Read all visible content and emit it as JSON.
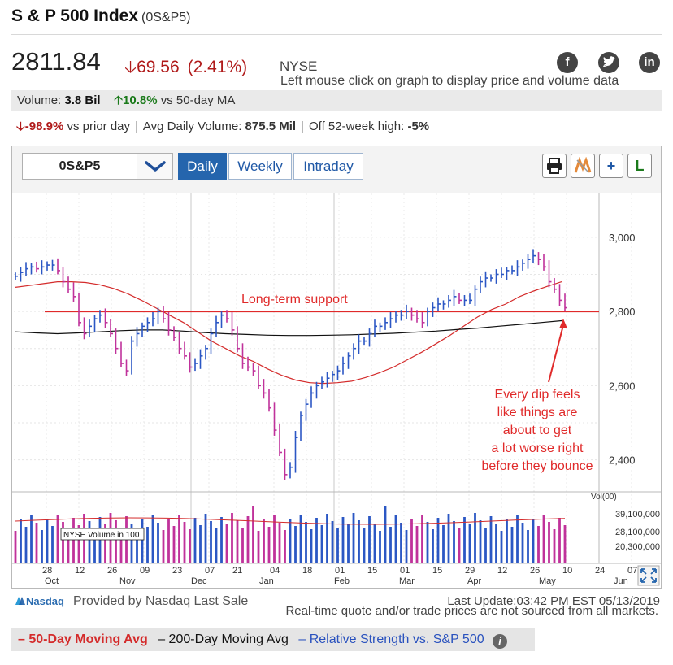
{
  "header": {
    "title": "S & P 500 Index",
    "symbol": "(0S&P5)",
    "price": "2811.84",
    "change": "69.56",
    "change_pct": "(2.41%)",
    "exchange": "NYSE",
    "social": [
      "facebook-icon",
      "twitter-icon",
      "linkedin-icon"
    ],
    "hint": "Left mouse click on graph to display price and volume data"
  },
  "volume_bar": {
    "label": "Volume:",
    "value": "3.8 Bil",
    "vs_ma_value": "10.8%",
    "vs_ma_label": "vs 50-day MA"
  },
  "stats": {
    "prior_value": "-98.9%",
    "prior_label": "vs prior day",
    "avg_label": "Avg Daily Volume:",
    "avg_value": "875.5 Mil",
    "off_label": "Off 52-week high:",
    "off_value": "-5%"
  },
  "toolbar": {
    "symbol_input": "0S&P5",
    "tabs": [
      "Daily",
      "Weekly",
      "Intraday"
    ],
    "active_tab": "Daily",
    "tools": [
      "print-icon",
      "toggle-icon",
      "add-icon",
      "l-icon"
    ],
    "tool_labels": {
      "add": "+",
      "l": "L"
    }
  },
  "chart_data": {
    "type": "line",
    "price_axis": {
      "ticks": [
        "3,000",
        "2,800",
        "2,600",
        "2,400"
      ],
      "values": [
        3000,
        2800,
        2600,
        2400
      ],
      "ylim": [
        2300,
        3100
      ]
    },
    "volume_axis": {
      "label": "Vol(00)",
      "ticks": [
        "39,100,000",
        "28,100,000",
        "20,300,000"
      ],
      "values": [
        39100000,
        28100000,
        20300000
      ]
    },
    "x_ticks": [
      "28",
      "12",
      "26",
      "09",
      "23",
      "07",
      "21",
      "04",
      "18",
      "01",
      "15",
      "01",
      "15",
      "29",
      "12",
      "26",
      "10",
      "24",
      "07"
    ],
    "months": [
      "Oct",
      "Nov",
      "Dec",
      "Jan",
      "Feb",
      "Mar",
      "Apr",
      "May",
      "Jun"
    ],
    "volume_label": "NYSE Volume in 100",
    "annotation_support": "Long-term support",
    "support_level": 2800,
    "annotation_note": [
      "Every dip feels",
      "like things are",
      "about to get",
      "a lot worse right",
      "before they bounce"
    ],
    "series": [
      {
        "name": "Price",
        "color": "#2b57c4",
        "values": [
          2895,
          2905,
          2915,
          2920,
          2915,
          2920,
          2925,
          2925,
          2910,
          2880,
          2860,
          2840,
          2770,
          2740,
          2760,
          2780,
          2790,
          2770,
          2740,
          2700,
          2660,
          2640,
          2720,
          2740,
          2760,
          2770,
          2780,
          2800,
          2780,
          2750,
          2730,
          2700,
          2680,
          2650,
          2660,
          2680,
          2700,
          2740,
          2770,
          2790,
          2780,
          2750,
          2700,
          2660,
          2650,
          2640,
          2600,
          2580,
          2540,
          2480,
          2420,
          2360,
          2380,
          2460,
          2520,
          2550,
          2580,
          2600,
          2610,
          2620,
          2630,
          2640,
          2660,
          2680,
          2700,
          2720,
          2720,
          2740,
          2760,
          2760,
          2770,
          2780,
          2790,
          2790,
          2800,
          2790,
          2780,
          2770,
          2800,
          2810,
          2820,
          2820,
          2830,
          2840,
          2830,
          2830,
          2830,
          2860,
          2880,
          2890,
          2890,
          2900,
          2900,
          2910,
          2910,
          2920,
          2930,
          2940,
          2950,
          2940,
          2920,
          2880,
          2860,
          2830,
          2810
        ]
      },
      {
        "name": "50-Day Moving Avg",
        "color": "#d42c2c",
        "values": [
          2865,
          2870,
          2875,
          2880,
          2880,
          2878,
          2872,
          2862,
          2848,
          2830,
          2810,
          2790,
          2770,
          2745,
          2720,
          2700,
          2680,
          2665,
          2645,
          2628,
          2615,
          2608,
          2606,
          2608,
          2612,
          2622,
          2635,
          2650,
          2670,
          2690,
          2712,
          2735,
          2760,
          2785,
          2805,
          2820,
          2840,
          2855,
          2868,
          2880
        ]
      },
      {
        "name": "200-Day Moving Avg",
        "color": "#111111",
        "values": [
          2745,
          2742,
          2740,
          2742,
          2745,
          2748,
          2750,
          2750,
          2747,
          2743,
          2740,
          2738,
          2736,
          2735,
          2735,
          2736,
          2737,
          2739,
          2741,
          2744,
          2747,
          2751,
          2755,
          2760,
          2765,
          2770,
          2775
        ]
      }
    ]
  },
  "attribution": {
    "provider": "Provided by Nasdaq Last Sale",
    "nasdaq": "Nasdaq",
    "last_update": "Last Update:03:42 PM EST 05/13/2019",
    "disclaimer": "Real-time quote and/or trade prices are not sourced from all markets."
  },
  "legend": {
    "ma50": "50-Day Moving Avg",
    "ma200": "200-Day Moving Avg",
    "rs": "Relative Strength vs. S&P 500"
  }
}
